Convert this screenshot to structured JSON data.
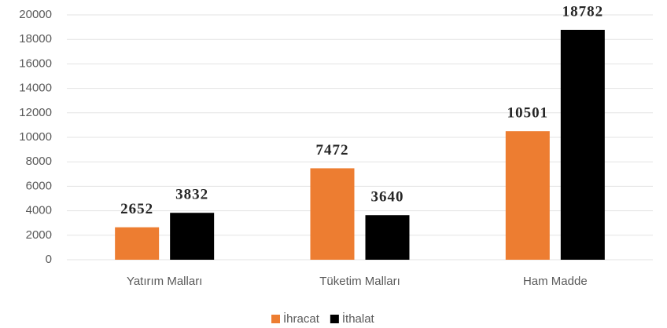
{
  "chart_data": {
    "type": "bar",
    "categories": [
      "Yatırım Malları",
      "Tüketim Malları",
      "Ham Madde"
    ],
    "series": [
      {
        "name": "İhracat",
        "color": "#ed7d31",
        "values": [
          2652,
          7472,
          10501
        ]
      },
      {
        "name": "İthalat",
        "color": "#000000",
        "values": [
          3832,
          3640,
          18782
        ]
      }
    ],
    "ylim": [
      0,
      20000
    ],
    "yticks": [
      0,
      2000,
      4000,
      6000,
      8000,
      10000,
      12000,
      14000,
      16000,
      18000,
      20000
    ],
    "grid": true,
    "legend": "bottom"
  }
}
